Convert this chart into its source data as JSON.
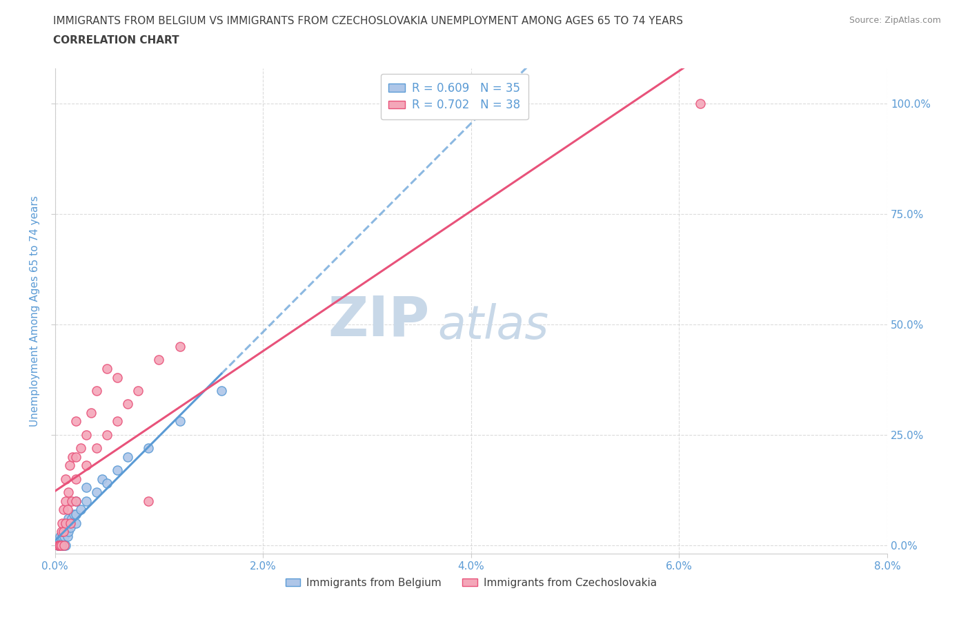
{
  "title_line1": "IMMIGRANTS FROM BELGIUM VS IMMIGRANTS FROM CZECHOSLOVAKIA UNEMPLOYMENT AMONG AGES 65 TO 74 YEARS",
  "title_line2": "CORRELATION CHART",
  "source": "Source: ZipAtlas.com",
  "xlabel_bottom": "Immigrants from Belgium",
  "ylabel": "Unemployment Among Ages 65 to 74 years",
  "xlim": [
    0.0,
    0.08
  ],
  "ylim": [
    -0.02,
    1.08
  ],
  "yticks": [
    0.0,
    0.25,
    0.5,
    0.75,
    1.0
  ],
  "ytick_labels": [
    "0.0%",
    "25.0%",
    "50.0%",
    "75.0%",
    "100.0%"
  ],
  "xticks": [
    0.0,
    0.02,
    0.04,
    0.06,
    0.08
  ],
  "xtick_labels": [
    "0.0%",
    "2.0%",
    "4.0%",
    "6.0%",
    "8.0%"
  ],
  "belgium_color": "#aec6e8",
  "czechoslovakia_color": "#f4a7b9",
  "belgium_edge": "#5b9bd5",
  "czechoslovakia_edge": "#e8527a",
  "regression_belgium_color": "#5b9bd5",
  "regression_czechoslovakia_color": "#e8527a",
  "R_belgium": 0.609,
  "N_belgium": 35,
  "R_czechoslovakia": 0.702,
  "N_czechoslovakia": 38,
  "watermark_top": "ZIP",
  "watermark_bottom": "atlas",
  "watermark_color": "#c8d8e8",
  "belgium_x": [
    0.0003,
    0.0003,
    0.0005,
    0.0005,
    0.0006,
    0.0007,
    0.0007,
    0.0008,
    0.0008,
    0.0009,
    0.0009,
    0.001,
    0.001,
    0.001,
    0.0012,
    0.0012,
    0.0013,
    0.0013,
    0.0015,
    0.0016,
    0.0018,
    0.002,
    0.002,
    0.002,
    0.0025,
    0.003,
    0.003,
    0.004,
    0.0045,
    0.005,
    0.006,
    0.007,
    0.009,
    0.012,
    0.016
  ],
  "belgium_y": [
    0.0,
    0.0,
    0.0,
    0.02,
    0.0,
    0.0,
    0.02,
    0.0,
    0.03,
    0.0,
    0.02,
    0.0,
    0.03,
    0.05,
    0.02,
    0.05,
    0.03,
    0.06,
    0.04,
    0.06,
    0.07,
    0.05,
    0.07,
    0.1,
    0.08,
    0.1,
    0.13,
    0.12,
    0.15,
    0.14,
    0.17,
    0.2,
    0.22,
    0.28,
    0.35
  ],
  "czechoslovakia_x": [
    0.0003,
    0.0004,
    0.0005,
    0.0006,
    0.0006,
    0.0007,
    0.0008,
    0.0008,
    0.0009,
    0.001,
    0.001,
    0.001,
    0.0012,
    0.0013,
    0.0014,
    0.0015,
    0.0016,
    0.0017,
    0.002,
    0.002,
    0.002,
    0.002,
    0.0025,
    0.003,
    0.003,
    0.0035,
    0.004,
    0.004,
    0.005,
    0.005,
    0.006,
    0.006,
    0.007,
    0.008,
    0.009,
    0.01,
    0.012,
    0.062
  ],
  "czechoslovakia_y": [
    0.0,
    0.0,
    0.0,
    0.0,
    0.03,
    0.05,
    0.03,
    0.08,
    0.0,
    0.05,
    0.1,
    0.15,
    0.08,
    0.12,
    0.18,
    0.05,
    0.1,
    0.2,
    0.1,
    0.15,
    0.2,
    0.28,
    0.22,
    0.18,
    0.25,
    0.3,
    0.22,
    0.35,
    0.25,
    0.4,
    0.28,
    0.38,
    0.32,
    0.35,
    0.1,
    0.42,
    0.45,
    1.0
  ],
  "background_color": "#ffffff",
  "grid_color": "#cccccc",
  "title_color": "#404040",
  "axis_label_color": "#5b9bd5",
  "tick_label_color": "#5b9bd5",
  "legend_value_color": "#5b9bd5"
}
